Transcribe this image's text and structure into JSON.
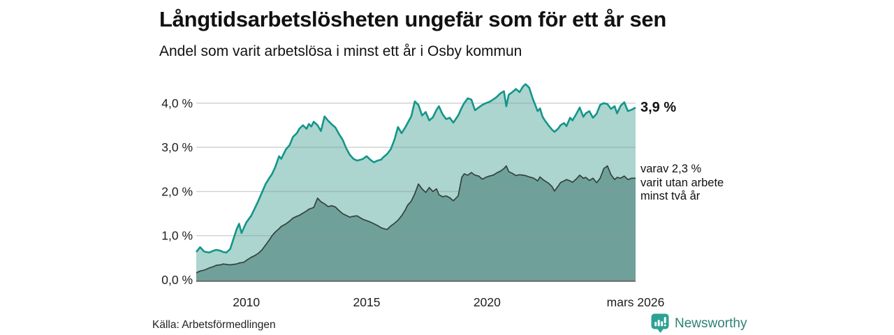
{
  "header": {
    "title": "Långtidsarbetslösheten ungefär som för ett år sen",
    "subtitle": "Andel som varit arbetslösa i minst ett år i Osby kommun"
  },
  "annotations": {
    "total_end_label": "3,9 %",
    "detail_lines": [
      "varav 2,3 %",
      "varit utan arbete",
      "minst två år"
    ]
  },
  "footer": {
    "source": "Källa: Arbetsförmedlingen",
    "brand": "Newsworthy"
  },
  "colors": {
    "line_total": "#14958a",
    "fill_total": "#abd5ce",
    "line_two_years": "#33423e",
    "fill_two_years": "#70a09a",
    "gridline": "rgba(140,150,156,0.45)",
    "axis": "#5a6b66",
    "brand_teal": "#2ba293",
    "brand_text": "#2d8176"
  },
  "chart_data": {
    "type": "area",
    "title": "Långtidsarbetslösheten ungefär som för ett år sen",
    "subtitle": "Andel som varit arbetslösa i minst ett år i Osby kommun",
    "unit": "%",
    "grid": true,
    "legend": "none (direct labels at line ends)",
    "x_range": [
      2007.92,
      2026.17
    ],
    "y_range": [
      0,
      4.6
    ],
    "y_ticks": [
      {
        "value": 0,
        "label": "0,0 %"
      },
      {
        "value": 1,
        "label": "1,0 %"
      },
      {
        "value": 2,
        "label": "2,0 %"
      },
      {
        "value": 3,
        "label": "3,0 %"
      },
      {
        "value": 4,
        "label": "4,0 %"
      }
    ],
    "x_ticks": [
      {
        "value": 2010,
        "label": "2010"
      },
      {
        "value": 2015,
        "label": "2015"
      },
      {
        "value": 2020,
        "label": "2020"
      },
      {
        "value": 2026.17,
        "label": "mars 2026"
      }
    ],
    "series_meta": [
      {
        "key": "total",
        "name": "Andel arbetslösa minst ett år",
        "end_value": 3.9,
        "end_label": "3,9 %"
      },
      {
        "key": "two_years",
        "name": "varav utan arbete minst två år",
        "end_value": 2.3,
        "end_label": "varav 2,3 % varit utan arbete minst två år"
      }
    ],
    "points": [
      [
        2007.92,
        0.63,
        0.16
      ],
      [
        2008.08,
        0.74,
        0.2
      ],
      [
        2008.25,
        0.64,
        0.22
      ],
      [
        2008.46,
        0.62,
        0.27
      ],
      [
        2008.63,
        0.66,
        0.3
      ],
      [
        2008.75,
        0.68,
        0.33
      ],
      [
        2008.92,
        0.66,
        0.34
      ],
      [
        2009.04,
        0.63,
        0.36
      ],
      [
        2009.17,
        0.62,
        0.35
      ],
      [
        2009.33,
        0.7,
        0.34
      ],
      [
        2009.46,
        0.92,
        0.35
      ],
      [
        2009.6,
        1.15,
        0.36
      ],
      [
        2009.7,
        1.27,
        0.38
      ],
      [
        2009.8,
        1.06,
        0.39
      ],
      [
        2009.9,
        1.18,
        0.4
      ],
      [
        2010.0,
        1.3,
        0.44
      ],
      [
        2010.2,
        1.45,
        0.51
      ],
      [
        2010.35,
        1.62,
        0.55
      ],
      [
        2010.5,
        1.79,
        0.6
      ],
      [
        2010.65,
        1.98,
        0.68
      ],
      [
        2010.8,
        2.17,
        0.79
      ],
      [
        2010.95,
        2.3,
        0.9
      ],
      [
        2011.07,
        2.4,
        1.0
      ],
      [
        2011.2,
        2.55,
        1.08
      ],
      [
        2011.36,
        2.8,
        1.16
      ],
      [
        2011.45,
        2.74,
        1.21
      ],
      [
        2011.55,
        2.85,
        1.24
      ],
      [
        2011.65,
        2.96,
        1.27
      ],
      [
        2011.8,
        3.05,
        1.33
      ],
      [
        2011.94,
        3.24,
        1.4
      ],
      [
        2012.1,
        3.32,
        1.44
      ],
      [
        2012.2,
        3.42,
        1.46
      ],
      [
        2012.35,
        3.5,
        1.51
      ],
      [
        2012.5,
        3.42,
        1.56
      ],
      [
        2012.6,
        3.53,
        1.6
      ],
      [
        2012.7,
        3.47,
        1.62
      ],
      [
        2012.8,
        3.58,
        1.64
      ],
      [
        2012.96,
        3.5,
        1.85
      ],
      [
        2013.1,
        3.37,
        1.77
      ],
      [
        2013.25,
        3.7,
        1.72
      ],
      [
        2013.4,
        3.6,
        1.66
      ],
      [
        2013.55,
        3.52,
        1.68
      ],
      [
        2013.7,
        3.45,
        1.65
      ],
      [
        2013.85,
        3.3,
        1.57
      ],
      [
        2014.0,
        3.17,
        1.5
      ],
      [
        2014.15,
        2.98,
        1.46
      ],
      [
        2014.3,
        2.83,
        1.42
      ],
      [
        2014.45,
        2.74,
        1.44
      ],
      [
        2014.6,
        2.7,
        1.45
      ],
      [
        2014.75,
        2.72,
        1.4
      ],
      [
        2014.85,
        2.74,
        1.37
      ],
      [
        2015.0,
        2.8,
        1.34
      ],
      [
        2015.15,
        2.72,
        1.31
      ],
      [
        2015.3,
        2.66,
        1.27
      ],
      [
        2015.45,
        2.7,
        1.23
      ],
      [
        2015.6,
        2.72,
        1.18
      ],
      [
        2015.7,
        2.78,
        1.16
      ],
      [
        2015.85,
        2.85,
        1.14
      ],
      [
        2016.0,
        2.96,
        1.22
      ],
      [
        2016.15,
        3.17,
        1.28
      ],
      [
        2016.3,
        3.46,
        1.35
      ],
      [
        2016.45,
        3.32,
        1.45
      ],
      [
        2016.6,
        3.45,
        1.58
      ],
      [
        2016.7,
        3.55,
        1.69
      ],
      [
        2016.85,
        3.7,
        1.78
      ],
      [
        2017.0,
        4.04,
        1.95
      ],
      [
        2017.15,
        3.96,
        2.17
      ],
      [
        2017.3,
        3.72,
        2.06
      ],
      [
        2017.45,
        3.8,
        1.98
      ],
      [
        2017.6,
        3.61,
        2.09
      ],
      [
        2017.75,
        3.68,
        2.0
      ],
      [
        2017.9,
        3.85,
        2.06
      ],
      [
        2018.0,
        3.93,
        1.93
      ],
      [
        2018.15,
        3.75,
        1.88
      ],
      [
        2018.3,
        3.64,
        1.9
      ],
      [
        2018.45,
        3.67,
        1.86
      ],
      [
        2018.6,
        3.56,
        1.79
      ],
      [
        2018.8,
        3.72,
        1.9
      ],
      [
        2018.95,
        3.9,
        2.32
      ],
      [
        2019.05,
        4.0,
        2.4
      ],
      [
        2019.2,
        4.11,
        2.37
      ],
      [
        2019.35,
        4.08,
        2.43
      ],
      [
        2019.5,
        3.84,
        2.37
      ],
      [
        2019.65,
        3.9,
        2.35
      ],
      [
        2019.8,
        3.96,
        2.28
      ],
      [
        2019.95,
        4.0,
        2.32
      ],
      [
        2020.1,
        4.03,
        2.35
      ],
      [
        2020.25,
        4.08,
        2.37
      ],
      [
        2020.4,
        4.14,
        2.42
      ],
      [
        2020.55,
        4.22,
        2.46
      ],
      [
        2020.7,
        4.27,
        2.52
      ],
      [
        2020.8,
        3.93,
        2.58
      ],
      [
        2020.9,
        4.19,
        2.45
      ],
      [
        2021.05,
        4.25,
        2.41
      ],
      [
        2021.2,
        4.32,
        2.36
      ],
      [
        2021.35,
        4.25,
        2.38
      ],
      [
        2021.5,
        4.38,
        2.37
      ],
      [
        2021.6,
        4.43,
        2.36
      ],
      [
        2021.75,
        4.35,
        2.33
      ],
      [
        2021.9,
        4.1,
        2.31
      ],
      [
        2022.0,
        3.96,
        2.28
      ],
      [
        2022.1,
        3.82,
        2.24
      ],
      [
        2022.2,
        3.88,
        2.33
      ],
      [
        2022.3,
        3.7,
        2.28
      ],
      [
        2022.4,
        3.61,
        2.24
      ],
      [
        2022.55,
        3.5,
        2.19
      ],
      [
        2022.7,
        3.4,
        2.11
      ],
      [
        2022.8,
        3.35,
        2.01
      ],
      [
        2022.95,
        3.42,
        2.12
      ],
      [
        2023.05,
        3.5,
        2.2
      ],
      [
        2023.2,
        3.55,
        2.24
      ],
      [
        2023.3,
        3.48,
        2.27
      ],
      [
        2023.45,
        3.67,
        2.24
      ],
      [
        2023.55,
        3.61,
        2.21
      ],
      [
        2023.7,
        3.75,
        2.28
      ],
      [
        2023.85,
        3.9,
        2.37
      ],
      [
        2024.0,
        3.69,
        2.3
      ],
      [
        2024.1,
        3.77,
        2.32
      ],
      [
        2024.25,
        3.82,
        2.25
      ],
      [
        2024.4,
        3.67,
        2.3
      ],
      [
        2024.55,
        3.76,
        2.2
      ],
      [
        2024.7,
        3.96,
        2.3
      ],
      [
        2024.85,
        4.0,
        2.52
      ],
      [
        2025.0,
        3.98,
        2.58
      ],
      [
        2025.15,
        3.87,
        2.38
      ],
      [
        2025.3,
        3.93,
        2.27
      ],
      [
        2025.4,
        3.77,
        2.32
      ],
      [
        2025.55,
        3.94,
        2.3
      ],
      [
        2025.7,
        4.02,
        2.35
      ],
      [
        2025.85,
        3.82,
        2.27
      ],
      [
        2026.0,
        3.85,
        2.3
      ],
      [
        2026.17,
        3.9,
        2.3
      ]
    ]
  }
}
